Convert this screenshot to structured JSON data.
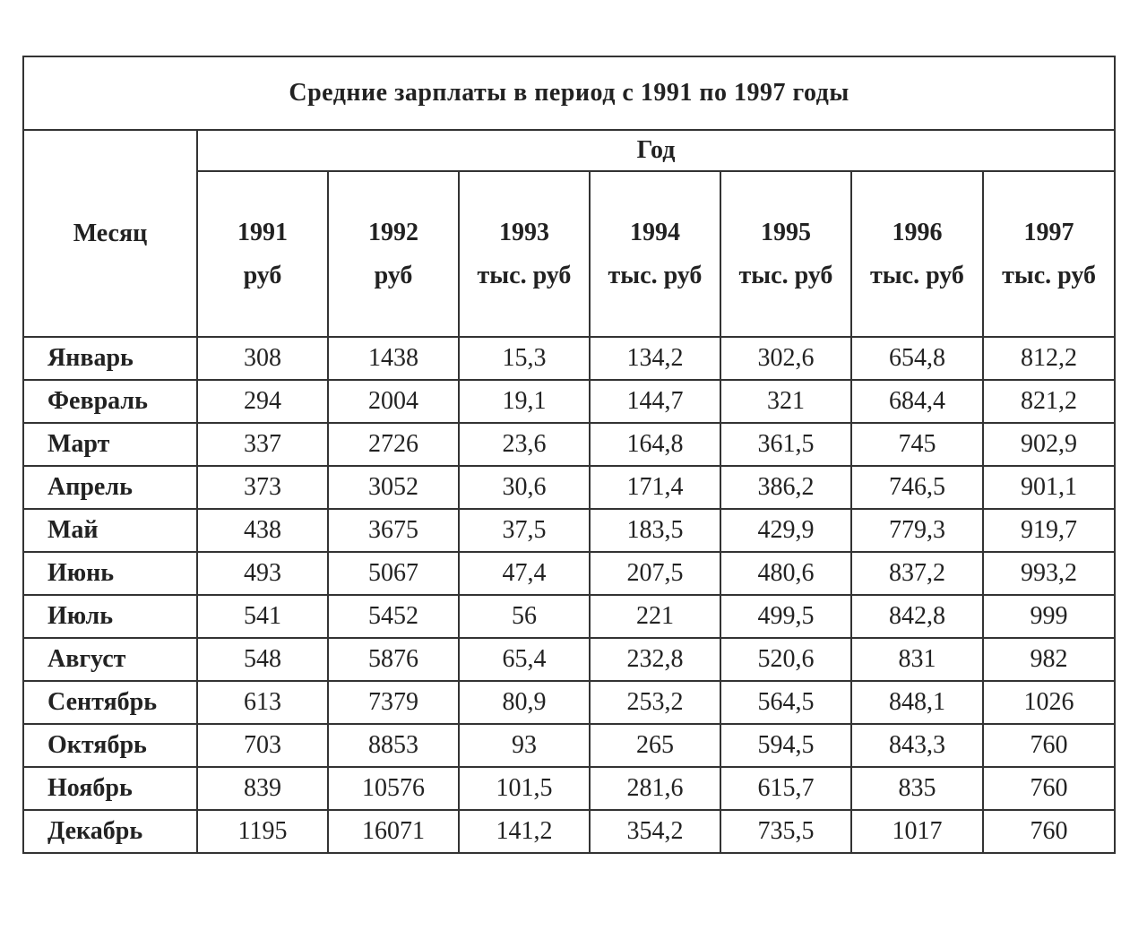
{
  "chart_data": {
    "type": "table",
    "title": "Средние зарплаты в период с 1991 по 1997 годы",
    "corner_header": "Месяц",
    "group_header": "Год",
    "columns": [
      {
        "year": "1991",
        "unit": "руб"
      },
      {
        "year": "1992",
        "unit": "руб"
      },
      {
        "year": "1993",
        "unit": "тыс. руб"
      },
      {
        "year": "1994",
        "unit": "тыс. руб"
      },
      {
        "year": "1995",
        "unit": "тыс. руб"
      },
      {
        "year": "1996",
        "unit": "тыс. руб"
      },
      {
        "year": "1997",
        "unit": "тыс. руб"
      }
    ],
    "rows": [
      {
        "month": "Январь",
        "values": [
          "308",
          "1438",
          "15,3",
          "134,2",
          "302,6",
          "654,8",
          "812,2"
        ]
      },
      {
        "month": "Февраль",
        "values": [
          "294",
          "2004",
          "19,1",
          "144,7",
          "321",
          "684,4",
          "821,2"
        ]
      },
      {
        "month": "Март",
        "values": [
          "337",
          "2726",
          "23,6",
          "164,8",
          "361,5",
          "745",
          "902,9"
        ]
      },
      {
        "month": "Апрель",
        "values": [
          "373",
          "3052",
          "30,6",
          "171,4",
          "386,2",
          "746,5",
          "901,1"
        ]
      },
      {
        "month": "Май",
        "values": [
          "438",
          "3675",
          "37,5",
          "183,5",
          "429,9",
          "779,3",
          "919,7"
        ]
      },
      {
        "month": "Июнь",
        "values": [
          "493",
          "5067",
          "47,4",
          "207,5",
          "480,6",
          "837,2",
          "993,2"
        ]
      },
      {
        "month": "Июль",
        "values": [
          "541",
          "5452",
          "56",
          "221",
          "499,5",
          "842,8",
          "999"
        ]
      },
      {
        "month": "Август",
        "values": [
          "548",
          "5876",
          "65,4",
          "232,8",
          "520,6",
          "831",
          "982"
        ]
      },
      {
        "month": "Сентябрь",
        "values": [
          "613",
          "7379",
          "80,9",
          "253,2",
          "564,5",
          "848,1",
          "1026"
        ]
      },
      {
        "month": "Октябрь",
        "values": [
          "703",
          "8853",
          "93",
          "265",
          "594,5",
          "843,3",
          "760"
        ]
      },
      {
        "month": "Ноябрь",
        "values": [
          "839",
          "10576",
          "101,5",
          "281,6",
          "615,7",
          "835",
          "760"
        ]
      },
      {
        "month": "Декабрь",
        "values": [
          "1195",
          "16071",
          "141,2",
          "354,2",
          "735,5",
          "1017",
          "760"
        ]
      }
    ],
    "layout": {
      "grid": true,
      "border_color": "#333333",
      "text_color": "#222222",
      "background_color": "#ffffff"
    }
  }
}
